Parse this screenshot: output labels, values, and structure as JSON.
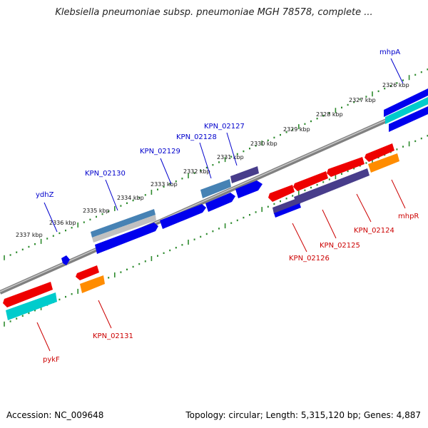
{
  "title": "Klebsiella pneumoniae subsp. pneumoniae MGH 78578, complete ...",
  "footer": {
    "accession": "Accession: NC_009648",
    "summary": "Topology: circular; Length: 5,315,120 bp; Genes: 4,887"
  },
  "colors": {
    "backbone": "#808080",
    "tick": "#2e8b2e",
    "forward_label": "#0000cc",
    "reverse_label": "#cc0000",
    "cds_blue": "#0000ee",
    "cds_red": "#ee0000",
    "gene_cyan": "#00cccc",
    "gene_steel": "#4682b4",
    "gene_slate": "#483d8b",
    "gene_orange": "#ff8c00"
  },
  "kbp_labels": [
    "2326 kbp",
    "2327 kbp",
    "2328 kbp",
    "2329 kbp",
    "2330 kbp",
    "2331 kbp",
    "2332 kbp",
    "2333 kbp",
    "2334 kbp",
    "2335 kbp",
    "2336 kbp",
    "2337 kbp"
  ],
  "forward_genes": [
    "mhpA",
    "KPN_02127",
    "KPN_02128",
    "KPN_02129",
    "KPN_02130",
    "ydhZ"
  ],
  "reverse_genes": [
    "mhpR",
    "KPN_02124",
    "KPN_02125",
    "KPN_02126",
    "KPN_02131",
    "pykF"
  ]
}
